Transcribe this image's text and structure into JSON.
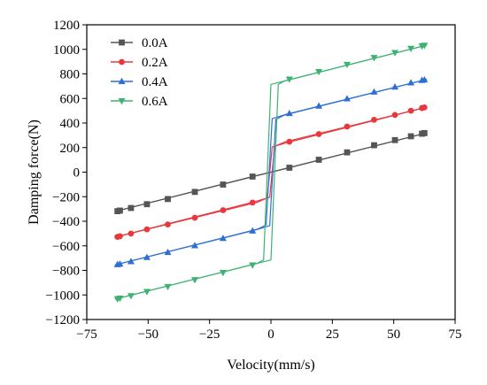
{
  "chart_data": {
    "type": "line",
    "title": "",
    "xlabel": "Velocity(mm/s)",
    "ylabel": "Damping force(N)",
    "xlim": [
      -75,
      75
    ],
    "ylim": [
      -1200,
      1200
    ],
    "xticks": [
      -75,
      -50,
      -25,
      0,
      25,
      50,
      75
    ],
    "yticks": [
      -1200,
      -1000,
      -800,
      -600,
      -400,
      -200,
      0,
      200,
      400,
      600,
      800,
      1000,
      1200
    ],
    "grid": false,
    "legend_position": "top-left",
    "series": [
      {
        "name": "0.0A",
        "color": "#555555",
        "marker": "square",
        "upper": [
          [
            -63.5,
            -320
          ],
          [
            -5.5,
            -26
          ],
          [
            0,
            0
          ],
          [
            5.5,
            26
          ],
          [
            63.5,
            320
          ]
        ],
        "lower": [
          [
            -63.5,
            -320
          ],
          [
            0,
            0
          ],
          [
            63.5,
            320
          ]
        ],
        "markers": [
          [
            -62.5,
            -318
          ],
          [
            -61.5,
            -313
          ],
          [
            -57,
            -292
          ],
          [
            -50.5,
            -261
          ],
          [
            -42,
            -219
          ],
          [
            -31,
            -161
          ],
          [
            -19.5,
            -101
          ],
          [
            -7.5,
            -36
          ],
          [
            7.5,
            36
          ],
          [
            19.5,
            101
          ],
          [
            31,
            161
          ],
          [
            42,
            219
          ],
          [
            50.5,
            261
          ],
          [
            57,
            292
          ],
          [
            61.5,
            313
          ],
          [
            62.5,
            318
          ]
        ]
      },
      {
        "name": "0.2A",
        "color": "#e8383d",
        "marker": "circle",
        "upper": [
          [
            -63.5,
            -530
          ],
          [
            -5.5,
            -245
          ],
          [
            -1.5,
            -210
          ],
          [
            0.5,
            205
          ],
          [
            6.5,
            240
          ],
          [
            63.5,
            530
          ]
        ],
        "lower": [
          [
            -63.5,
            -530
          ],
          [
            -6.5,
            -240
          ],
          [
            -0.5,
            -205
          ],
          [
            1.5,
            210
          ],
          [
            5.5,
            245
          ],
          [
            63.5,
            530
          ]
        ],
        "markers": [
          [
            -62.5,
            -527
          ],
          [
            -61.5,
            -522
          ],
          [
            -57,
            -500
          ],
          [
            -50.5,
            -466
          ],
          [
            -42,
            -426
          ],
          [
            -31,
            -371
          ],
          [
            -19.5,
            -310
          ],
          [
            -7.5,
            -248
          ],
          [
            7.5,
            248
          ],
          [
            19.5,
            310
          ],
          [
            31,
            371
          ],
          [
            42,
            426
          ],
          [
            50.5,
            466
          ],
          [
            57,
            500
          ],
          [
            61.5,
            522
          ],
          [
            62.5,
            527
          ]
        ]
      },
      {
        "name": "0.4A",
        "color": "#2c6fd6",
        "marker": "triangle-up",
        "upper": [
          [
            -63.5,
            -755
          ],
          [
            -5.5,
            -465
          ],
          [
            -2,
            -430
          ],
          [
            0.5,
            435
          ],
          [
            6,
            470
          ],
          [
            63.5,
            755
          ]
        ],
        "lower": [
          [
            -63.5,
            -755
          ],
          [
            -6,
            -470
          ],
          [
            -0.5,
            -435
          ],
          [
            2,
            430
          ],
          [
            5.5,
            465
          ],
          [
            63.5,
            755
          ]
        ],
        "markers": [
          [
            -62.5,
            -752
          ],
          [
            -61.5,
            -748
          ],
          [
            -57,
            -728
          ],
          [
            -50.5,
            -694
          ],
          [
            -42,
            -653
          ],
          [
            -31,
            -598
          ],
          [
            -19.5,
            -539
          ],
          [
            -7.5,
            -478
          ],
          [
            7.5,
            478
          ],
          [
            19.5,
            539
          ],
          [
            31,
            598
          ],
          [
            42,
            653
          ],
          [
            50.5,
            694
          ],
          [
            57,
            728
          ],
          [
            61.5,
            748
          ],
          [
            62.5,
            752
          ]
        ]
      },
      {
        "name": "0.6A",
        "color": "#3cb371",
        "marker": "triangle-down",
        "upper": [
          [
            -63.5,
            -1035
          ],
          [
            -5.5,
            -742
          ],
          [
            -3,
            -715
          ],
          [
            0,
            715
          ],
          [
            7,
            750
          ],
          [
            63.5,
            1035
          ]
        ],
        "lower": [
          [
            -63.5,
            -1035
          ],
          [
            -7,
            -750
          ],
          [
            0,
            -715
          ],
          [
            3,
            715
          ],
          [
            5.5,
            742
          ],
          [
            63.5,
            1035
          ]
        ],
        "markers": [
          [
            -62.5,
            -1032
          ],
          [
            -61.5,
            -1027
          ],
          [
            -57,
            -1007
          ],
          [
            -50.5,
            -973
          ],
          [
            -42,
            -932
          ],
          [
            -31,
            -877
          ],
          [
            -19.5,
            -818
          ],
          [
            -7.5,
            -757
          ],
          [
            7.5,
            757
          ],
          [
            19.5,
            818
          ],
          [
            31,
            877
          ],
          [
            42,
            932
          ],
          [
            50.5,
            973
          ],
          [
            57,
            1007
          ],
          [
            61.5,
            1027
          ],
          [
            62.5,
            1032
          ]
        ]
      }
    ]
  }
}
